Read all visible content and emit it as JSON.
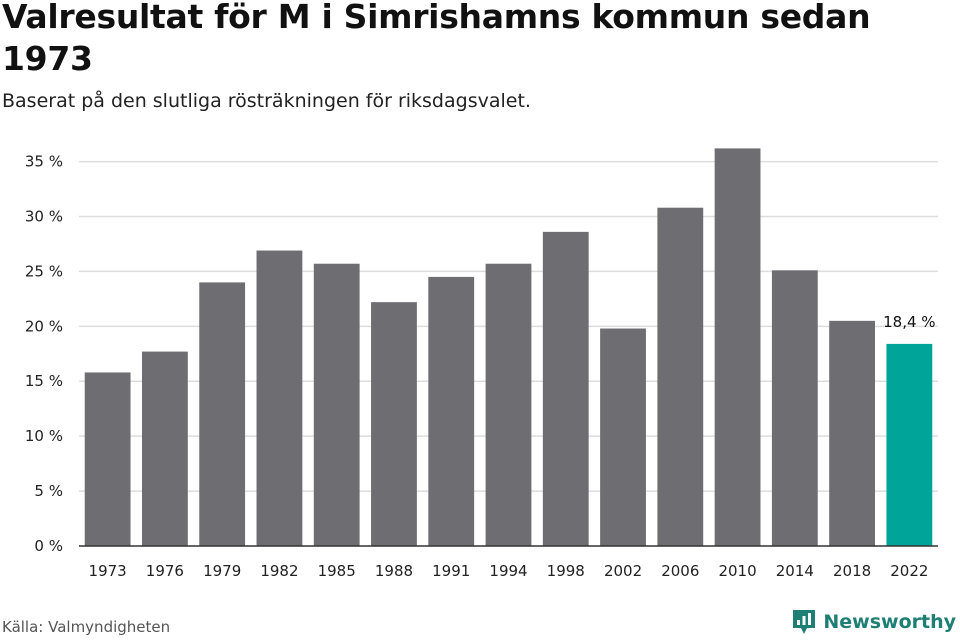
{
  "header": {
    "title": "Valresultat för M i Simrishamns kommun sedan 1973",
    "subtitle": "Baserat på den slutliga rösträkningen för riksdagsvalet."
  },
  "footer": {
    "source": "Källa: Valmyndigheten",
    "brand": "Newsworthy",
    "brand_icon": "newsworthy-logo-icon"
  },
  "colors": {
    "bar": "#6e6d72",
    "highlight": "#00a499",
    "grid": "#dddddd",
    "axis": "#333333",
    "brand": "#1e7f75"
  },
  "chart_data": {
    "type": "bar",
    "categories": [
      "1973",
      "1976",
      "1979",
      "1982",
      "1985",
      "1988",
      "1991",
      "1994",
      "1998",
      "2002",
      "2006",
      "2010",
      "2014",
      "2018",
      "2022"
    ],
    "values": [
      15.8,
      17.7,
      24.0,
      26.9,
      25.7,
      22.2,
      24.5,
      25.7,
      28.6,
      19.8,
      30.8,
      36.2,
      25.1,
      20.5,
      18.4
    ],
    "highlight_index": 14,
    "data_labels": [
      {
        "index": 14,
        "text": "18,4 %"
      }
    ],
    "ylim": [
      0,
      35
    ],
    "yticks": [
      0,
      5,
      10,
      15,
      20,
      25,
      30,
      35
    ],
    "ytick_labels": [
      "0 %",
      "5 %",
      "10 %",
      "15 %",
      "20 %",
      "25 %",
      "30 %",
      "35 %"
    ],
    "grid": true,
    "legend": false
  }
}
